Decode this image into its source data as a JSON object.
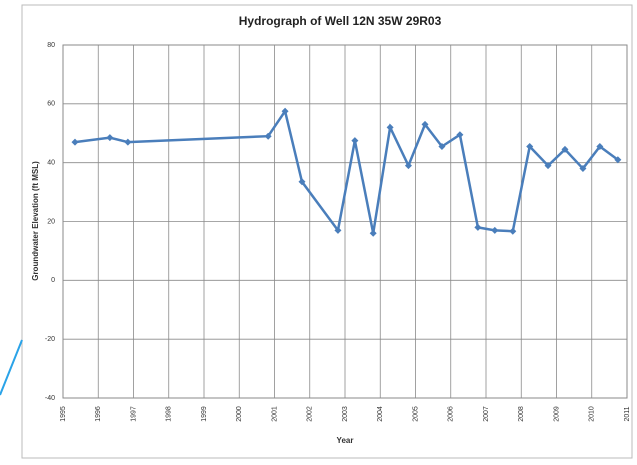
{
  "chart_data": {
    "type": "line",
    "title": "Hydrograph of Well 12N 35W 29R03",
    "x_label": "Year",
    "y_label": "Groundwater Elevation (ft MSL)",
    "x": [
      1995.34,
      1996.33,
      1996.84,
      2000.82,
      2001.3,
      2001.78,
      2002.8,
      2003.28,
      2003.8,
      2004.28,
      2004.8,
      2005.27,
      2005.75,
      2006.26,
      2006.77,
      2007.25,
      2007.76,
      2008.24,
      2008.76,
      2009.24,
      2009.75,
      2010.23,
      2010.74
    ],
    "series": [
      {
        "name": "Well 12N 35W 29R03",
        "color": "#4a7ebb",
        "values": [
          47,
          48.5,
          47,
          49,
          57.5,
          33.5,
          17,
          47.5,
          16,
          52,
          39,
          53,
          45.5,
          49.5,
          18,
          17,
          16.7,
          45.5,
          39,
          44.5,
          38,
          45.5,
          41
        ]
      }
    ],
    "xlim": [
      1995,
      2011
    ],
    "xticks": [
      1995,
      1996,
      1997,
      1998,
      1999,
      2000,
      2001,
      2002,
      2003,
      2004,
      2005,
      2006,
      2007,
      2008,
      2009,
      2010,
      2011
    ],
    "ylim": [
      -40,
      80
    ],
    "yticks": [
      -40,
      -20,
      0,
      20,
      40,
      60,
      80
    ],
    "grid": true
  }
}
